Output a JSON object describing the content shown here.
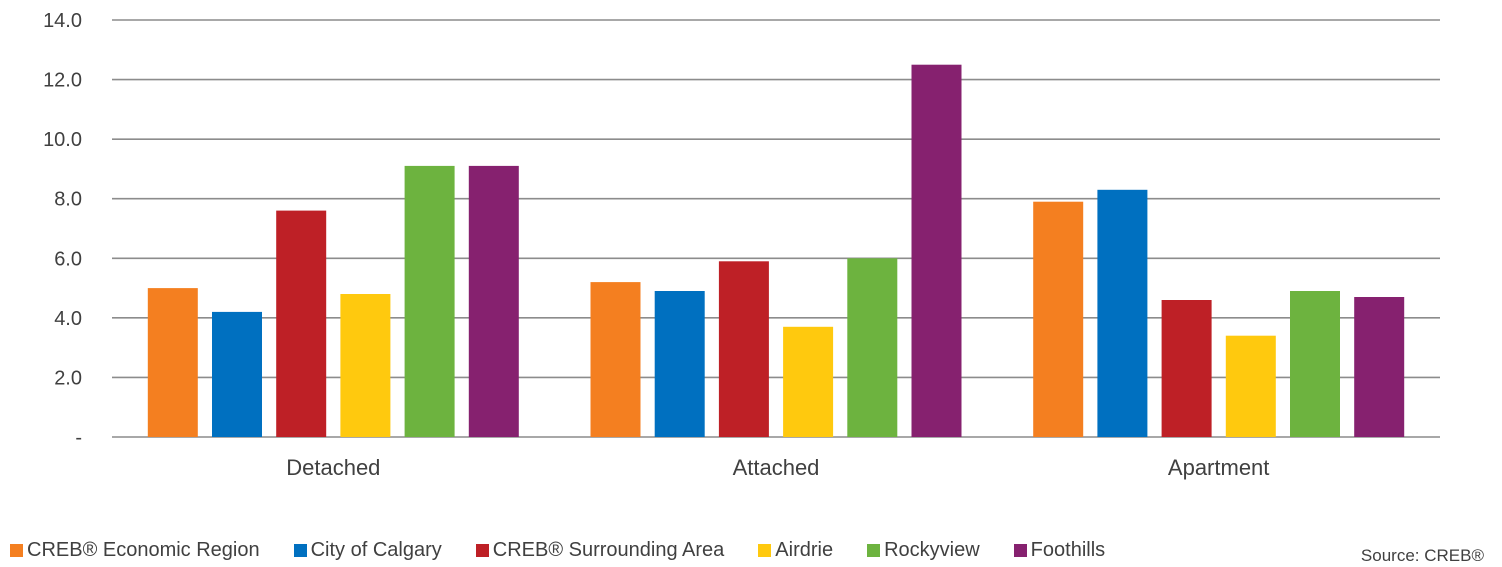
{
  "chart_data": {
    "type": "bar",
    "categories": [
      "Detached",
      "Attached",
      "Apartment"
    ],
    "series": [
      {
        "name": "CREB® Economic Region",
        "color": "#f47f20",
        "values": [
          5.0,
          5.2,
          7.9
        ]
      },
      {
        "name": "City of Calgary",
        "color": "#0070c0",
        "values": [
          4.2,
          4.9,
          8.3
        ]
      },
      {
        "name": "CREB® Surrounding Area",
        "color": "#be2026",
        "values": [
          7.6,
          5.9,
          4.6
        ]
      },
      {
        "name": "Airdrie",
        "color": "#ffc90e",
        "values": [
          4.8,
          3.7,
          3.4
        ]
      },
      {
        "name": "Rockyview",
        "color": "#6db33f",
        "values": [
          9.1,
          6.0,
          4.9
        ]
      },
      {
        "name": "Foothills",
        "color": "#86216f",
        "values": [
          9.1,
          12.5,
          4.7
        ]
      }
    ],
    "yticks": [
      "-",
      "2.0",
      "4.0",
      "6.0",
      "8.0",
      "10.0",
      "12.0",
      "14.0"
    ],
    "ylim": [
      0,
      14
    ],
    "grid": true,
    "legend_position": "bottom",
    "source": "Source: CREB®"
  }
}
